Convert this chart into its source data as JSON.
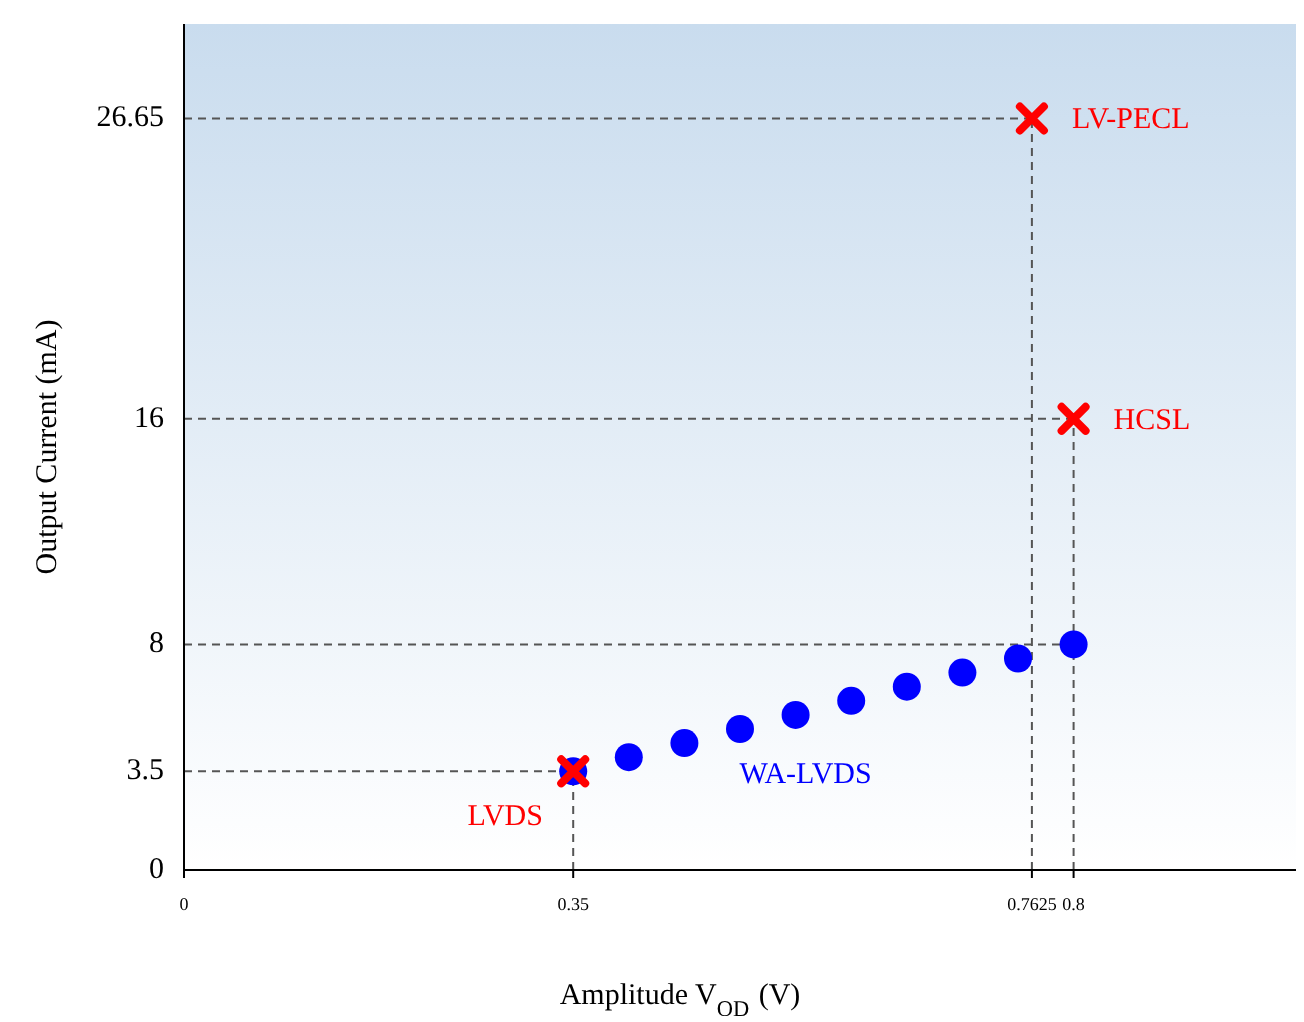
{
  "chart_data": {
    "type": "scatter",
    "xlabel": "Amplitude V$_{OD}$ (V)",
    "ylabel": "Output Current (mA)",
    "xlim": [
      0,
      1
    ],
    "ylim": [
      0,
      30
    ],
    "xticks": [
      0,
      0.35,
      0.7625,
      0.8
    ],
    "yticks": [
      0,
      3.5,
      8,
      16,
      26.65
    ],
    "grid": false,
    "series": [
      {
        "name": "WA-LVDS",
        "color": "#0000ff",
        "marker": "circle",
        "x": [
          0.35,
          0.4,
          0.45,
          0.5,
          0.55,
          0.6,
          0.65,
          0.7,
          0.75,
          0.8
        ],
        "values": [
          3.5,
          4,
          4.5,
          5,
          5.5,
          6,
          6.5,
          7,
          7.5,
          8
        ]
      },
      {
        "color": "#ff0000",
        "marker": "cross",
        "x": [
          0.35,
          0.7625,
          0.8
        ],
        "values": [
          3.5,
          26.65,
          16
        ]
      }
    ],
    "ref_lines": [
      {
        "axis": "y",
        "value": 26.65,
        "line_style": "dashed"
      },
      {
        "axis": "y",
        "value": 16,
        "line_style": "dashed"
      },
      {
        "axis": "y",
        "value": 8,
        "line_style": "dashed"
      },
      {
        "axis": "y",
        "value": 3.5,
        "line_style": "dashed"
      },
      {
        "axis": "x",
        "value": 0.35,
        "line_style": "dashed"
      },
      {
        "axis": "x",
        "value": 0.7625,
        "line_style": "dashed"
      },
      {
        "axis": "x",
        "value": 0.8,
        "line_style": "dashed"
      }
    ],
    "annotations": [
      {
        "text": "LVDS",
        "x": 0.35,
        "y": 3.5
      },
      {
        "text": "LV-PECL",
        "x": 0.7625,
        "y": 26.65
      },
      {
        "text": "HCSL",
        "x": 0.8,
        "y": 16
      }
    ]
  }
}
